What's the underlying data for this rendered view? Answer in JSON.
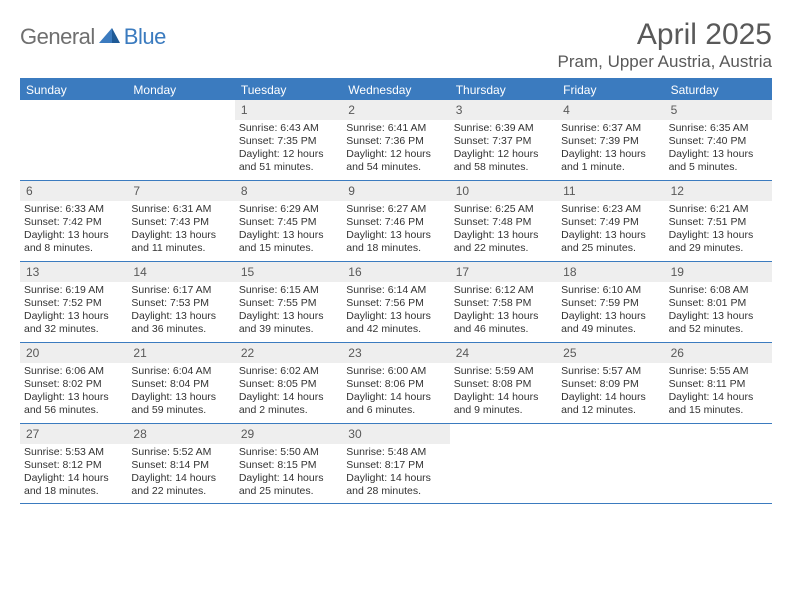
{
  "brand": {
    "part1": "General",
    "part2": "Blue"
  },
  "title": "April 2025",
  "location": "Pram, Upper Austria, Austria",
  "colors": {
    "header_bg": "#3b7bbf",
    "header_text": "#ffffff",
    "daynum_bg": "#eeeeee",
    "text_muted": "#595959",
    "rule": "#3b7bbf",
    "body_text": "#333333"
  },
  "dayNames": [
    "Sunday",
    "Monday",
    "Tuesday",
    "Wednesday",
    "Thursday",
    "Friday",
    "Saturday"
  ],
  "weeks": [
    [
      {
        "n": "",
        "sr": "",
        "ss": "",
        "dl": ""
      },
      {
        "n": "",
        "sr": "",
        "ss": "",
        "dl": ""
      },
      {
        "n": "1",
        "sr": "Sunrise: 6:43 AM",
        "ss": "Sunset: 7:35 PM",
        "dl": "Daylight: 12 hours and 51 minutes."
      },
      {
        "n": "2",
        "sr": "Sunrise: 6:41 AM",
        "ss": "Sunset: 7:36 PM",
        "dl": "Daylight: 12 hours and 54 minutes."
      },
      {
        "n": "3",
        "sr": "Sunrise: 6:39 AM",
        "ss": "Sunset: 7:37 PM",
        "dl": "Daylight: 12 hours and 58 minutes."
      },
      {
        "n": "4",
        "sr": "Sunrise: 6:37 AM",
        "ss": "Sunset: 7:39 PM",
        "dl": "Daylight: 13 hours and 1 minute."
      },
      {
        "n": "5",
        "sr": "Sunrise: 6:35 AM",
        "ss": "Sunset: 7:40 PM",
        "dl": "Daylight: 13 hours and 5 minutes."
      }
    ],
    [
      {
        "n": "6",
        "sr": "Sunrise: 6:33 AM",
        "ss": "Sunset: 7:42 PM",
        "dl": "Daylight: 13 hours and 8 minutes."
      },
      {
        "n": "7",
        "sr": "Sunrise: 6:31 AM",
        "ss": "Sunset: 7:43 PM",
        "dl": "Daylight: 13 hours and 11 minutes."
      },
      {
        "n": "8",
        "sr": "Sunrise: 6:29 AM",
        "ss": "Sunset: 7:45 PM",
        "dl": "Daylight: 13 hours and 15 minutes."
      },
      {
        "n": "9",
        "sr": "Sunrise: 6:27 AM",
        "ss": "Sunset: 7:46 PM",
        "dl": "Daylight: 13 hours and 18 minutes."
      },
      {
        "n": "10",
        "sr": "Sunrise: 6:25 AM",
        "ss": "Sunset: 7:48 PM",
        "dl": "Daylight: 13 hours and 22 minutes."
      },
      {
        "n": "11",
        "sr": "Sunrise: 6:23 AM",
        "ss": "Sunset: 7:49 PM",
        "dl": "Daylight: 13 hours and 25 minutes."
      },
      {
        "n": "12",
        "sr": "Sunrise: 6:21 AM",
        "ss": "Sunset: 7:51 PM",
        "dl": "Daylight: 13 hours and 29 minutes."
      }
    ],
    [
      {
        "n": "13",
        "sr": "Sunrise: 6:19 AM",
        "ss": "Sunset: 7:52 PM",
        "dl": "Daylight: 13 hours and 32 minutes."
      },
      {
        "n": "14",
        "sr": "Sunrise: 6:17 AM",
        "ss": "Sunset: 7:53 PM",
        "dl": "Daylight: 13 hours and 36 minutes."
      },
      {
        "n": "15",
        "sr": "Sunrise: 6:15 AM",
        "ss": "Sunset: 7:55 PM",
        "dl": "Daylight: 13 hours and 39 minutes."
      },
      {
        "n": "16",
        "sr": "Sunrise: 6:14 AM",
        "ss": "Sunset: 7:56 PM",
        "dl": "Daylight: 13 hours and 42 minutes."
      },
      {
        "n": "17",
        "sr": "Sunrise: 6:12 AM",
        "ss": "Sunset: 7:58 PM",
        "dl": "Daylight: 13 hours and 46 minutes."
      },
      {
        "n": "18",
        "sr": "Sunrise: 6:10 AM",
        "ss": "Sunset: 7:59 PM",
        "dl": "Daylight: 13 hours and 49 minutes."
      },
      {
        "n": "19",
        "sr": "Sunrise: 6:08 AM",
        "ss": "Sunset: 8:01 PM",
        "dl": "Daylight: 13 hours and 52 minutes."
      }
    ],
    [
      {
        "n": "20",
        "sr": "Sunrise: 6:06 AM",
        "ss": "Sunset: 8:02 PM",
        "dl": "Daylight: 13 hours and 56 minutes."
      },
      {
        "n": "21",
        "sr": "Sunrise: 6:04 AM",
        "ss": "Sunset: 8:04 PM",
        "dl": "Daylight: 13 hours and 59 minutes."
      },
      {
        "n": "22",
        "sr": "Sunrise: 6:02 AM",
        "ss": "Sunset: 8:05 PM",
        "dl": "Daylight: 14 hours and 2 minutes."
      },
      {
        "n": "23",
        "sr": "Sunrise: 6:00 AM",
        "ss": "Sunset: 8:06 PM",
        "dl": "Daylight: 14 hours and 6 minutes."
      },
      {
        "n": "24",
        "sr": "Sunrise: 5:59 AM",
        "ss": "Sunset: 8:08 PM",
        "dl": "Daylight: 14 hours and 9 minutes."
      },
      {
        "n": "25",
        "sr": "Sunrise: 5:57 AM",
        "ss": "Sunset: 8:09 PM",
        "dl": "Daylight: 14 hours and 12 minutes."
      },
      {
        "n": "26",
        "sr": "Sunrise: 5:55 AM",
        "ss": "Sunset: 8:11 PM",
        "dl": "Daylight: 14 hours and 15 minutes."
      }
    ],
    [
      {
        "n": "27",
        "sr": "Sunrise: 5:53 AM",
        "ss": "Sunset: 8:12 PM",
        "dl": "Daylight: 14 hours and 18 minutes."
      },
      {
        "n": "28",
        "sr": "Sunrise: 5:52 AM",
        "ss": "Sunset: 8:14 PM",
        "dl": "Daylight: 14 hours and 22 minutes."
      },
      {
        "n": "29",
        "sr": "Sunrise: 5:50 AM",
        "ss": "Sunset: 8:15 PM",
        "dl": "Daylight: 14 hours and 25 minutes."
      },
      {
        "n": "30",
        "sr": "Sunrise: 5:48 AM",
        "ss": "Sunset: 8:17 PM",
        "dl": "Daylight: 14 hours and 28 minutes."
      },
      {
        "n": "",
        "sr": "",
        "ss": "",
        "dl": ""
      },
      {
        "n": "",
        "sr": "",
        "ss": "",
        "dl": ""
      },
      {
        "n": "",
        "sr": "",
        "ss": "",
        "dl": ""
      }
    ]
  ]
}
